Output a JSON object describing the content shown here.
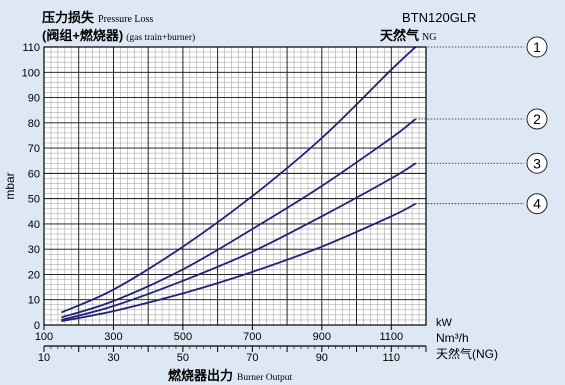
{
  "chart_data": {
    "type": "line",
    "title": "压力损失",
    "title_en": "Pressure Loss",
    "subtitle": "(阀组+燃烧器)",
    "subtitle_en": "(gas train+burner)",
    "model": "BTN120GLR",
    "fuel_label": "天然气",
    "fuel_label_en": "NG",
    "ylabel": "mbar",
    "ylim": [
      0,
      110
    ],
    "y_ticks": [
      0,
      10,
      20,
      30,
      40,
      50,
      60,
      70,
      80,
      90,
      100,
      110
    ],
    "grid": true,
    "x_axes": [
      {
        "unit": "kW",
        "range": [
          100,
          1200
        ],
        "ticks": [
          100,
          300,
          500,
          700,
          900,
          1100
        ]
      },
      {
        "unit": "Nm³/h",
        "unit_sub": "天然气(NG)",
        "range": [
          10,
          120
        ],
        "ticks": [
          10,
          30,
          50,
          70,
          90,
          110
        ]
      }
    ],
    "xlabel": "燃烧器出力",
    "xlabel_en": "Burner Output",
    "series": [
      {
        "marker": "1",
        "color": "#22227a",
        "points": [
          [
            150,
            5
          ],
          [
            300,
            14
          ],
          [
            500,
            31
          ],
          [
            700,
            51
          ],
          [
            900,
            74
          ],
          [
            1100,
            101
          ],
          [
            1170,
            111
          ]
        ]
      },
      {
        "marker": "2",
        "color": "#22227a",
        "points": [
          [
            150,
            3
          ],
          [
            300,
            9.5
          ],
          [
            500,
            22
          ],
          [
            700,
            38
          ],
          [
            900,
            55
          ],
          [
            1100,
            74
          ],
          [
            1170,
            81.5
          ]
        ]
      },
      {
        "marker": "3",
        "color": "#22227a",
        "points": [
          [
            150,
            2
          ],
          [
            300,
            7.5
          ],
          [
            500,
            17.5
          ],
          [
            700,
            29
          ],
          [
            900,
            43
          ],
          [
            1100,
            58
          ],
          [
            1170,
            64
          ]
        ]
      },
      {
        "marker": "4",
        "color": "#22227a",
        "points": [
          [
            150,
            1.5
          ],
          [
            300,
            5.5
          ],
          [
            500,
            12.5
          ],
          [
            700,
            21
          ],
          [
            900,
            31
          ],
          [
            1100,
            43
          ],
          [
            1170,
            48
          ]
        ]
      }
    ]
  }
}
